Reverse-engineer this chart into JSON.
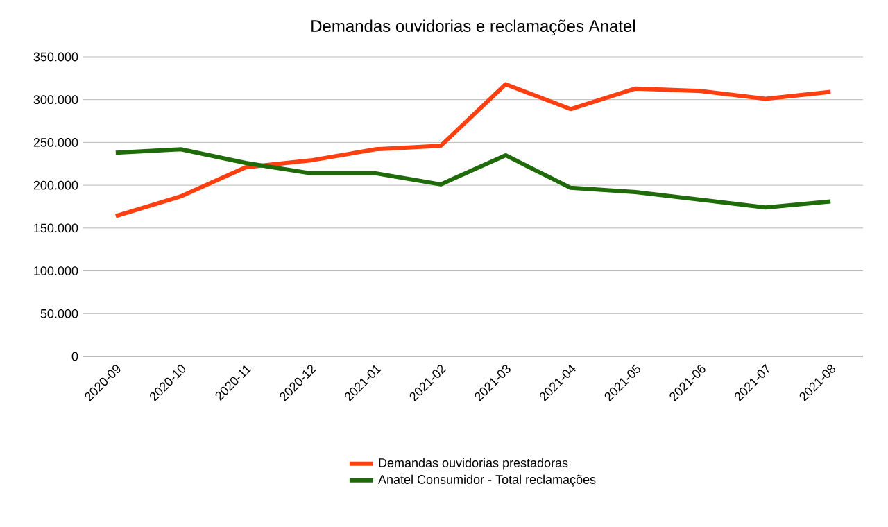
{
  "chart_data": {
    "type": "line",
    "title": "Demandas ouvidorias e reclamações Anatel",
    "categories": [
      "2020-09",
      "2020-10",
      "2020-11",
      "2020-12",
      "2021-01",
      "2021-02",
      "2021-03",
      "2021-04",
      "2021-05",
      "2021-06",
      "2021-07",
      "2021-08"
    ],
    "series": [
      {
        "name": "Demandas ouvidorias prestadoras",
        "color": "#ff3f0f",
        "values": [
          164000,
          187000,
          221000,
          229000,
          242000,
          246000,
          318000,
          289000,
          313000,
          310000,
          301000,
          309000
        ]
      },
      {
        "name": "Anatel Consumidor - Total reclamações",
        "color": "#1f6b0a",
        "values": [
          238000,
          242000,
          226000,
          214000,
          214000,
          201000,
          235000,
          197000,
          192000,
          183000,
          174000,
          181000
        ]
      }
    ],
    "ylim": [
      0,
      350000
    ],
    "yticks": [
      {
        "value": 0,
        "label": "0"
      },
      {
        "value": 50000,
        "label": "50.000"
      },
      {
        "value": 100000,
        "label": "100.000"
      },
      {
        "value": 150000,
        "label": "150.000"
      },
      {
        "value": 200000,
        "label": "200.000"
      },
      {
        "value": 250000,
        "label": "250.000"
      },
      {
        "value": 300000,
        "label": "300.000"
      },
      {
        "value": 350000,
        "label": "350.000"
      }
    ],
    "grid": "y",
    "legend": "bottom",
    "marker": "none",
    "line_style": "solid"
  }
}
